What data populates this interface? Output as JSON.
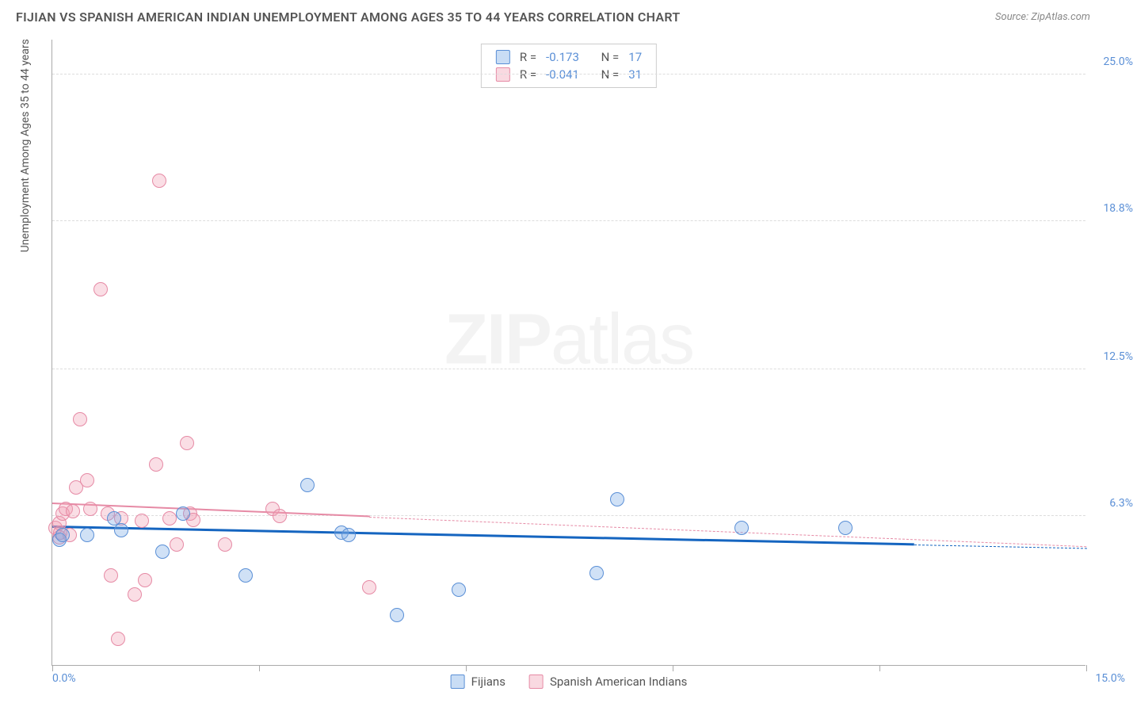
{
  "title": "FIJIAN VS SPANISH AMERICAN INDIAN UNEMPLOYMENT AMONG AGES 35 TO 44 YEARS CORRELATION CHART",
  "source": "Source: ZipAtlas.com",
  "watermark_bold": "ZIP",
  "watermark_light": "atlas",
  "y_axis_label": "Unemployment Among Ages 35 to 44 years",
  "x_axis": {
    "min": 0.0,
    "max": 15.0,
    "tick_step": 3.0,
    "labels": {
      "min": "0.0%",
      "max": "15.0%"
    }
  },
  "y_axis": {
    "min": 0.0,
    "max": 26.5,
    "ticks": [
      6.3,
      12.5,
      18.8,
      25.0
    ],
    "labels": [
      "6.3%",
      "12.5%",
      "18.8%",
      "25.0%"
    ]
  },
  "colors": {
    "blue_fill": "rgba(120,170,230,0.35)",
    "blue_stroke": "#5a8fd6",
    "blue_line": "#1565c0",
    "pink_fill": "rgba(240,160,180,0.35)",
    "pink_stroke": "#e68aa5",
    "pink_line": "#e68aa5",
    "grid": "#dddddd",
    "axis": "#aaaaaa",
    "text": "#555555",
    "tick_label": "#5a8fd6",
    "bg": "#ffffff"
  },
  "point_radius": 9,
  "stat_legend": [
    {
      "swatch": "blue",
      "r_label": "R =",
      "r_val": "-0.173",
      "n_label": "N =",
      "n_val": "17"
    },
    {
      "swatch": "pink",
      "r_label": "R =",
      "r_val": "-0.041",
      "n_label": "N =",
      "n_val": "31"
    }
  ],
  "bottom_legend": [
    {
      "swatch": "blue",
      "label": "Fijians"
    },
    {
      "swatch": "pink",
      "label": "Spanish American Indians"
    }
  ],
  "series": {
    "fijian": {
      "color": "blue",
      "trend": {
        "x1": 0.0,
        "y1": 5.8,
        "x2": 15.0,
        "y2": 4.9,
        "solid_until_x": 12.5,
        "width": 3
      },
      "points": [
        {
          "x": 0.1,
          "y": 5.3
        },
        {
          "x": 0.15,
          "y": 5.5
        },
        {
          "x": 0.5,
          "y": 5.5
        },
        {
          "x": 0.9,
          "y": 6.2
        },
        {
          "x": 1.0,
          "y": 5.7
        },
        {
          "x": 1.6,
          "y": 4.8
        },
        {
          "x": 1.9,
          "y": 6.4
        },
        {
          "x": 2.8,
          "y": 3.8
        },
        {
          "x": 3.7,
          "y": 7.6
        },
        {
          "x": 4.2,
          "y": 5.6
        },
        {
          "x": 4.3,
          "y": 5.5
        },
        {
          "x": 5.0,
          "y": 2.1
        },
        {
          "x": 5.9,
          "y": 3.2
        },
        {
          "x": 7.9,
          "y": 3.9
        },
        {
          "x": 8.2,
          "y": 7.0
        },
        {
          "x": 10.0,
          "y": 5.8
        },
        {
          "x": 11.5,
          "y": 5.8
        }
      ]
    },
    "spanish": {
      "color": "pink",
      "trend": {
        "x1": 0.0,
        "y1": 6.8,
        "x2": 15.0,
        "y2": 5.0,
        "solid_until_x": 4.6,
        "width": 2.5
      },
      "points": [
        {
          "x": 0.05,
          "y": 5.8
        },
        {
          "x": 0.1,
          "y": 6.0
        },
        {
          "x": 0.1,
          "y": 5.4
        },
        {
          "x": 0.12,
          "y": 5.6
        },
        {
          "x": 0.15,
          "y": 6.4
        },
        {
          "x": 0.2,
          "y": 6.6
        },
        {
          "x": 0.25,
          "y": 5.5
        },
        {
          "x": 0.3,
          "y": 6.5
        },
        {
          "x": 0.35,
          "y": 7.5
        },
        {
          "x": 0.4,
          "y": 10.4
        },
        {
          "x": 0.5,
          "y": 7.8
        },
        {
          "x": 0.55,
          "y": 6.6
        },
        {
          "x": 0.7,
          "y": 15.9
        },
        {
          "x": 0.8,
          "y": 6.4
        },
        {
          "x": 0.85,
          "y": 3.8
        },
        {
          "x": 0.95,
          "y": 1.1
        },
        {
          "x": 1.0,
          "y": 6.2
        },
        {
          "x": 1.2,
          "y": 3.0
        },
        {
          "x": 1.3,
          "y": 6.1
        },
        {
          "x": 1.35,
          "y": 3.6
        },
        {
          "x": 1.5,
          "y": 8.5
        },
        {
          "x": 1.55,
          "y": 20.5
        },
        {
          "x": 1.7,
          "y": 6.2
        },
        {
          "x": 1.8,
          "y": 5.1
        },
        {
          "x": 1.95,
          "y": 9.4
        },
        {
          "x": 2.0,
          "y": 6.4
        },
        {
          "x": 2.05,
          "y": 6.15
        },
        {
          "x": 2.5,
          "y": 5.1
        },
        {
          "x": 3.2,
          "y": 6.6
        },
        {
          "x": 3.3,
          "y": 6.3
        },
        {
          "x": 4.6,
          "y": 3.3
        }
      ]
    }
  }
}
